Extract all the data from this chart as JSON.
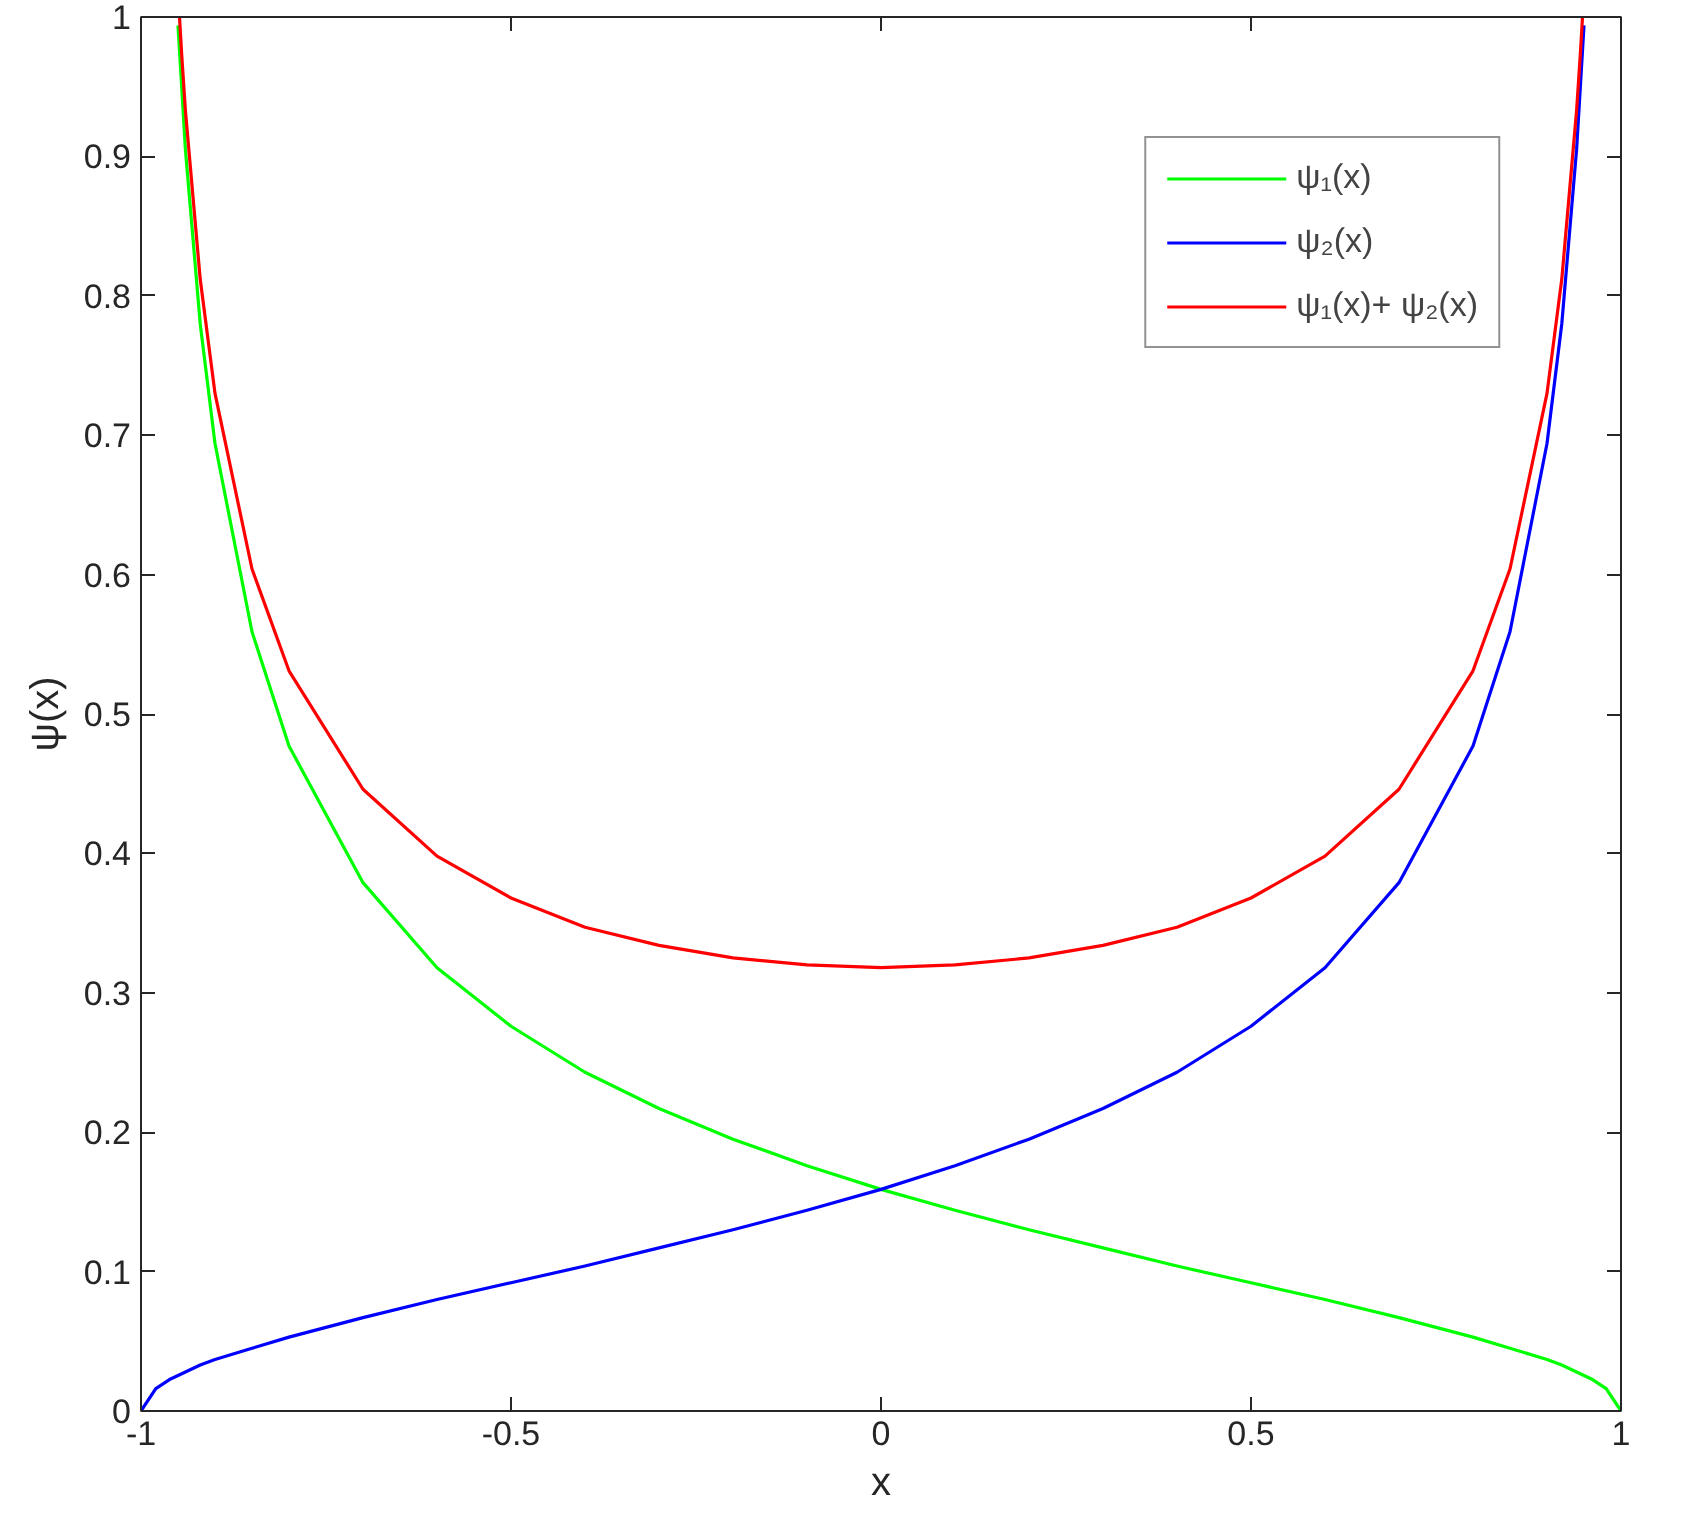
{
  "chart_data": {
    "type": "line",
    "xlabel": "x",
    "ylabel": "ψ(x)",
    "xlim": [
      -1,
      1
    ],
    "ylim": [
      0,
      1
    ],
    "xticks": [
      -1,
      -0.5,
      0,
      0.5,
      1
    ],
    "yticks": [
      0,
      0.1,
      0.2,
      0.3,
      0.4,
      0.5,
      0.6,
      0.7,
      0.8,
      0.9,
      1
    ],
    "grid": false,
    "legend": "top right",
    "line_style": "solid",
    "marker": "none",
    "series": [
      {
        "name": "ψ₁(x)",
        "color": "#00ff00",
        "x": [
          -0.95,
          -0.94,
          -0.92,
          -0.9,
          -0.85,
          -0.8,
          -0.7,
          -0.6,
          -0.5,
          -0.4,
          -0.3,
          -0.2,
          -0.1,
          0,
          0.1,
          0.2,
          0.3,
          0.4,
          0.5,
          0.6,
          0.7,
          0.8,
          0.85,
          0.9,
          0.92,
          0.94,
          0.96,
          0.98,
          1
        ],
        "values": [
          0.994,
          0.905,
          0.78,
          0.694,
          0.559,
          0.477,
          0.379,
          0.318,
          0.276,
          0.243,
          0.217,
          0.195,
          0.176,
          0.159,
          0.144,
          0.13,
          0.117,
          0.104,
          0.092,
          0.08,
          0.067,
          0.053,
          0.045,
          0.037,
          0.033,
          0.028,
          0.023,
          0.016,
          0
        ]
      },
      {
        "name": "ψ₂(x)",
        "color": "#0000ff",
        "x": [
          -1,
          -0.98,
          -0.96,
          -0.94,
          -0.92,
          -0.9,
          -0.85,
          -0.8,
          -0.7,
          -0.6,
          -0.5,
          -0.4,
          -0.3,
          -0.2,
          -0.1,
          0,
          0.1,
          0.2,
          0.3,
          0.4,
          0.5,
          0.6,
          0.7,
          0.8,
          0.85,
          0.9,
          0.92,
          0.94,
          0.95
        ],
        "values": [
          0,
          0.016,
          0.023,
          0.028,
          0.033,
          0.037,
          0.045,
          0.053,
          0.067,
          0.08,
          0.092,
          0.104,
          0.117,
          0.13,
          0.144,
          0.159,
          0.176,
          0.195,
          0.217,
          0.243,
          0.276,
          0.318,
          0.379,
          0.477,
          0.559,
          0.694,
          0.78,
          0.905,
          0.994
        ]
      },
      {
        "name": "ψ₁(x)+ ψ₂(x)",
        "color": "#ff0000",
        "x": [
          -0.948,
          -0.945,
          -0.94,
          -0.92,
          -0.9,
          -0.85,
          -0.8,
          -0.7,
          -0.6,
          -0.5,
          -0.4,
          -0.3,
          -0.2,
          -0.1,
          0,
          0.1,
          0.2,
          0.3,
          0.4,
          0.5,
          0.6,
          0.7,
          0.8,
          0.85,
          0.9,
          0.92,
          0.94,
          0.945,
          0.948
        ],
        "values": [
          1.0,
          0.973,
          0.933,
          0.812,
          0.73,
          0.604,
          0.531,
          0.446,
          0.398,
          0.368,
          0.347,
          0.334,
          0.325,
          0.32,
          0.318,
          0.32,
          0.325,
          0.334,
          0.347,
          0.368,
          0.398,
          0.446,
          0.531,
          0.604,
          0.73,
          0.812,
          0.933,
          0.973,
          1.0
        ]
      }
    ]
  }
}
